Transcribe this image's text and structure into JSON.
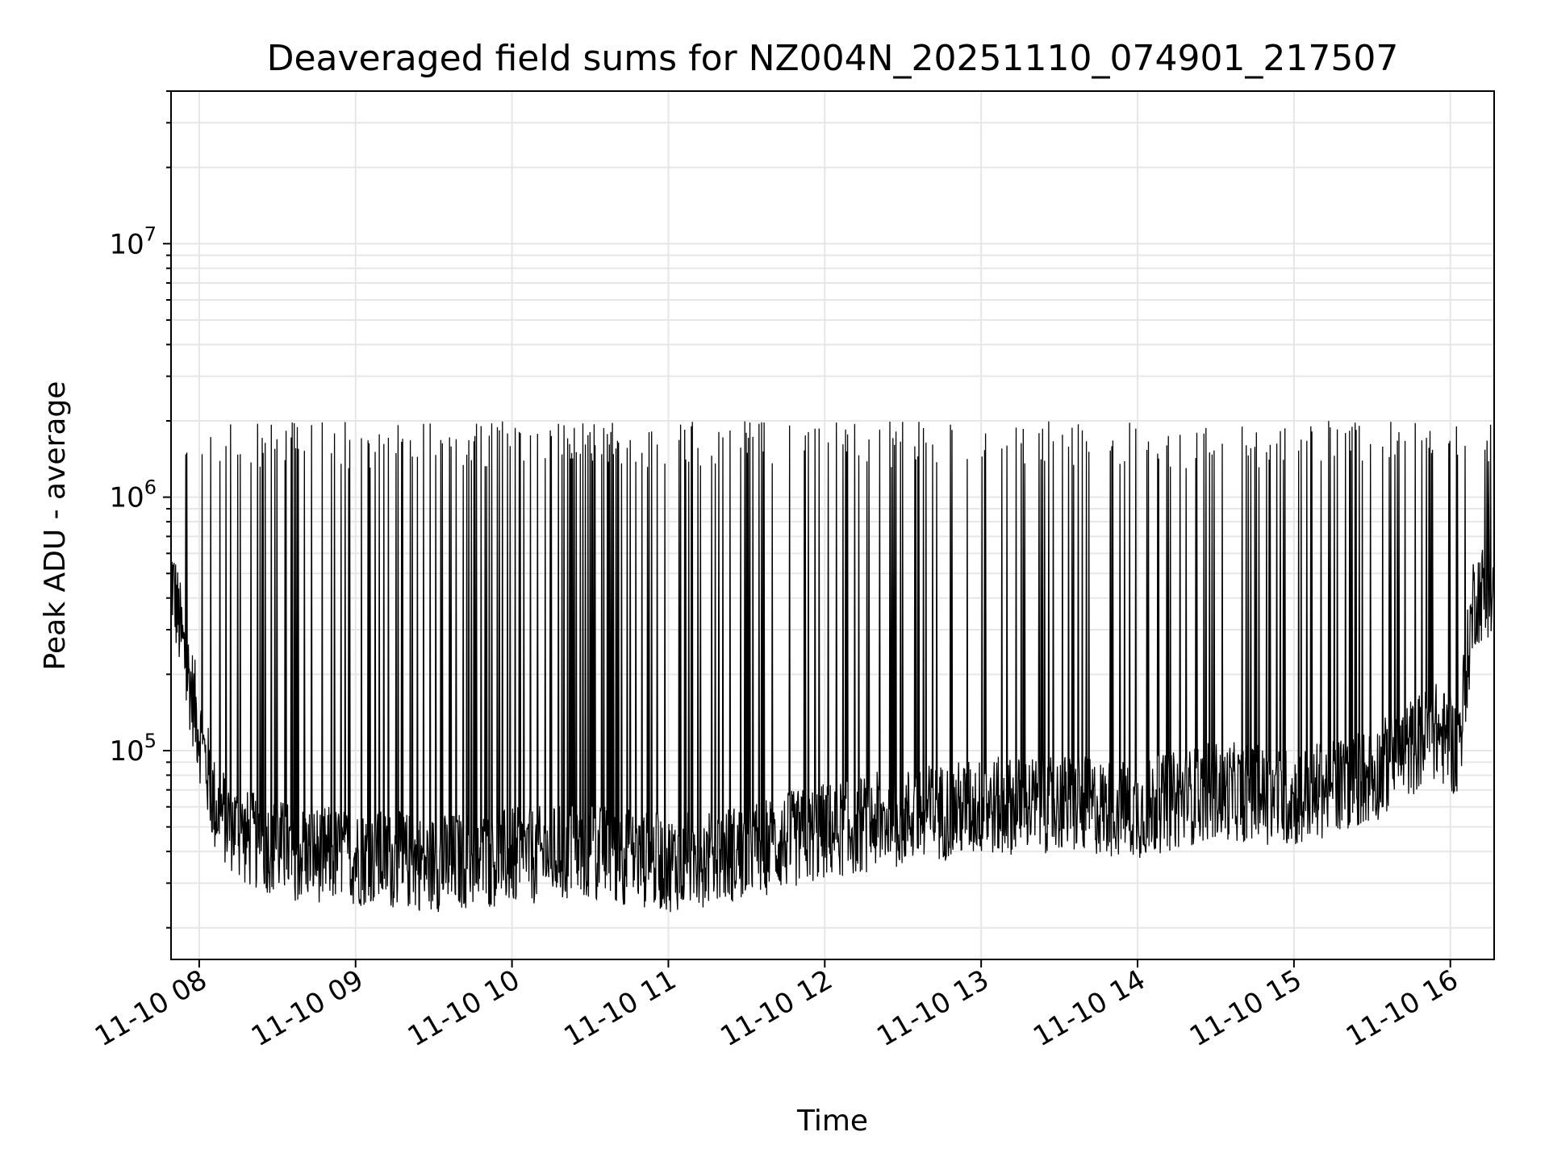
{
  "chart_data": {
    "type": "line",
    "title": "Deaveraged field sums for NZ004N_20251110_074901_217507",
    "xlabel": "Time",
    "ylabel": "Peak ADU - average",
    "yscale": "log",
    "ylim": [
      15000,
      40000000
    ],
    "xlim_hours": [
      7.82,
      16.28
    ],
    "grid": true,
    "x_ticks": [
      {
        "hour": 8,
        "label": "11-10 08"
      },
      {
        "hour": 9,
        "label": "11-10 09"
      },
      {
        "hour": 10,
        "label": "11-10 10"
      },
      {
        "hour": 11,
        "label": "11-10 11"
      },
      {
        "hour": 12,
        "label": "11-10 12"
      },
      {
        "hour": 13,
        "label": "11-10 13"
      },
      {
        "hour": 14,
        "label": "11-10 14"
      },
      {
        "hour": 15,
        "label": "11-10 15"
      },
      {
        "hour": 16,
        "label": "11-10 16"
      }
    ],
    "y_ticks": [
      {
        "value": 100000,
        "base": "10",
        "exp": "5"
      },
      {
        "value": 1000000,
        "base": "10",
        "exp": "6"
      },
      {
        "value": 10000000,
        "base": "10",
        "exp": "7"
      }
    ],
    "series": [
      {
        "name": "field sums",
        "color": "#000000",
        "baseline_profile": {
          "hours": [
            7.82,
            7.9,
            8.0,
            8.1,
            8.3,
            8.6,
            9.0,
            9.5,
            10.0,
            10.5,
            11.0,
            11.5,
            12.0,
            12.5,
            13.0,
            13.5,
            14.0,
            14.5,
            15.0,
            15.5,
            15.9,
            16.05,
            16.15,
            16.28
          ],
          "values": [
            500000,
            250000,
            120000,
            60000,
            45000,
            40000,
            38000,
            36000,
            38000,
            40000,
            36000,
            40000,
            48000,
            55000,
            60000,
            62000,
            58000,
            70000,
            65000,
            80000,
            120000,
            100000,
            400000,
            450000
          ]
        },
        "spike_peak_range": [
          1300000,
          2000000
        ],
        "value_min": 20000,
        "value_max": 2000000
      }
    ]
  }
}
